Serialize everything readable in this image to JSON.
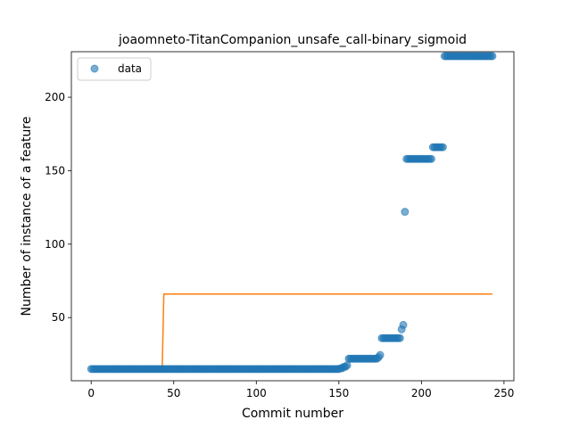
{
  "chart_data": {
    "type": "scatter",
    "title": "joaomneto-TitanCompanion_unsafe_call-binary_sigmoid",
    "xlabel": "Commit number",
    "ylabel": "Number of instance of a feature",
    "xlim": [
      -12,
      256
    ],
    "ylim": [
      7,
      231
    ],
    "x_ticks": [
      0,
      50,
      100,
      150,
      200,
      250
    ],
    "y_ticks": [
      50,
      100,
      150,
      200
    ],
    "grid": false,
    "legend": {
      "placement": "top-left",
      "entries": [
        "data"
      ]
    },
    "series": [
      {
        "name": "data",
        "kind": "scatter",
        "color": "#1f77b4",
        "segments": [
          {
            "x_start": 0,
            "x_end": 150,
            "y": 15
          },
          {
            "x_start": 151,
            "x_end": 152,
            "y": 15.5
          },
          {
            "x_start": 153,
            "x_end": 154,
            "y": 16.5
          },
          {
            "x_start": 155,
            "x_end": 155,
            "y": 17.5
          },
          {
            "x_start": 156,
            "x_end": 173,
            "y": 22
          },
          {
            "x_start": 174,
            "x_end": 174,
            "y": 23
          },
          {
            "x_start": 175,
            "x_end": 175,
            "y": 24.5
          },
          {
            "x_start": 176,
            "x_end": 187,
            "y": 36
          },
          {
            "x_start": 188,
            "x_end": 188,
            "y": 42
          },
          {
            "x_start": 189,
            "x_end": 189,
            "y": 45
          },
          {
            "x_start": 190,
            "x_end": 190,
            "y": 122
          },
          {
            "x_start": 191,
            "x_end": 206,
            "y": 158
          },
          {
            "x_start": 207,
            "x_end": 213,
            "y": 166
          },
          {
            "x_start": 214,
            "x_end": 243,
            "y": 228
          }
        ]
      },
      {
        "kind": "line",
        "color": "#ff7f0e",
        "points": [
          [
            0,
            14.5
          ],
          [
            43,
            14.5
          ],
          [
            44,
            66
          ],
          [
            243,
            66
          ]
        ]
      }
    ]
  }
}
